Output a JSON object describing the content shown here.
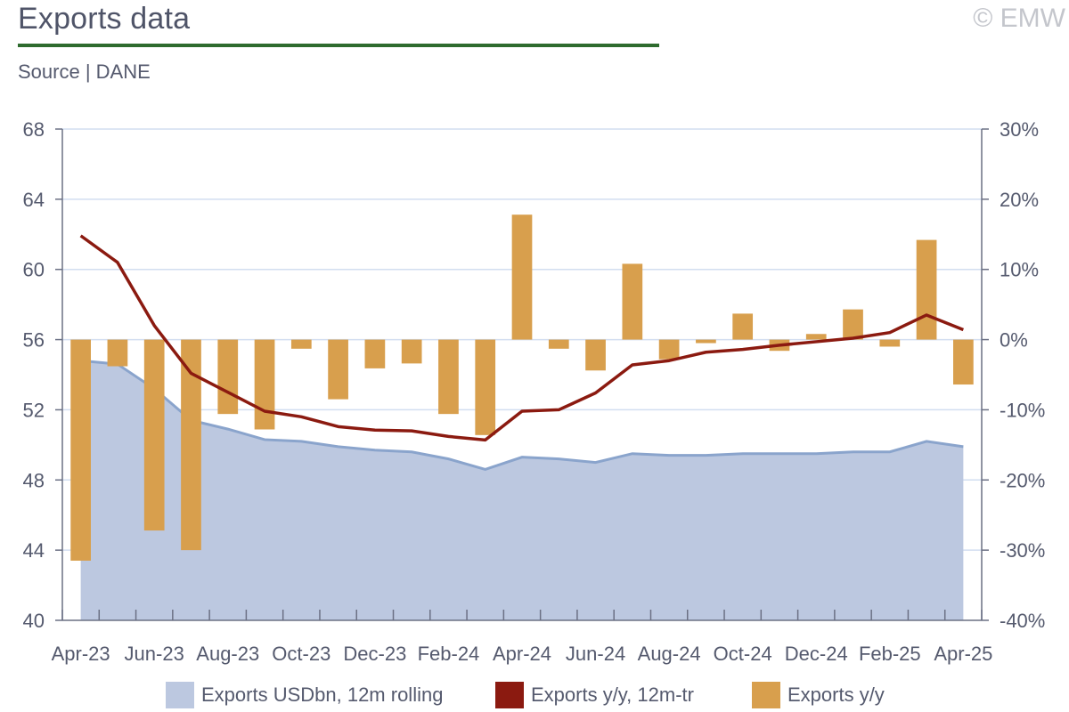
{
  "header": {
    "title": "Exports data",
    "copyright": "© EMW",
    "source": "Source | DANE"
  },
  "colors": {
    "area": "#bcc8e0",
    "area_line": "#8aa4cc",
    "line": "#8b1a10",
    "bars": "#d89f4d",
    "grid": "#d2def0",
    "axis": "#6b7084",
    "title_rule": "#2e6b2e"
  },
  "chart_data": {
    "type": "bar",
    "x": [
      "Apr-23",
      "May-23",
      "Jun-23",
      "Jul-23",
      "Aug-23",
      "Sep-23",
      "Oct-23",
      "Nov-23",
      "Dec-23",
      "Jan-24",
      "Feb-24",
      "Mar-24",
      "Apr-24",
      "May-24",
      "Jun-24",
      "Jul-24",
      "Aug-24",
      "Sep-24",
      "Oct-24",
      "Nov-24",
      "Dec-24",
      "Jan-25",
      "Feb-25",
      "Mar-25",
      "Apr-25"
    ],
    "x_tick_labels": [
      "Apr-23",
      "Jun-23",
      "Aug-23",
      "Oct-23",
      "Dec-23",
      "Feb-24",
      "Apr-24",
      "Jun-24",
      "Aug-24",
      "Oct-24",
      "Dec-24",
      "Feb-25",
      "Apr-25"
    ],
    "y_left": {
      "ylim": [
        40,
        68
      ],
      "ticks": [
        "40",
        "44",
        "48",
        "52",
        "56",
        "60",
        "64",
        "68"
      ]
    },
    "y_right": {
      "ylim": [
        -40,
        30
      ],
      "ticks": [
        "-40%",
        "-30%",
        "-20%",
        "-10%",
        "0%",
        "10%",
        "20%",
        "30%"
      ]
    },
    "grid": true,
    "legend_position": "bottom",
    "series": [
      {
        "name": "Exports USDbn, 12m rolling",
        "type": "area",
        "axis": "left",
        "values": [
          54.8,
          54.6,
          53.2,
          51.4,
          50.9,
          50.3,
          50.2,
          49.9,
          49.7,
          49.6,
          49.2,
          48.6,
          49.3,
          49.2,
          49.0,
          49.5,
          49.4,
          49.4,
          49.5,
          49.5,
          49.5,
          49.6,
          49.6,
          50.2,
          49.9
        ]
      },
      {
        "name": "Exports y/y, 12m-tr",
        "type": "line",
        "axis": "right",
        "values": [
          14.8,
          11.0,
          2.0,
          -4.8,
          -7.5,
          -10.2,
          -11.0,
          -12.4,
          -12.9,
          -13.0,
          -13.8,
          -14.3,
          -10.2,
          -10.0,
          -7.6,
          -3.6,
          -3.0,
          -1.8,
          -1.4,
          -0.8,
          -0.3,
          0.2,
          1.0,
          3.5,
          1.4
        ]
      },
      {
        "name": "Exports y/y",
        "type": "bar",
        "axis": "right",
        "values": [
          -31.5,
          -3.8,
          -27.2,
          -30.0,
          -10.6,
          -12.8,
          -1.3,
          -8.5,
          -4.1,
          -3.4,
          -10.6,
          -13.6,
          17.8,
          -1.3,
          -4.4,
          10.8,
          -2.8,
          -0.5,
          3.7,
          -1.6,
          0.8,
          4.3,
          -1.0,
          14.2,
          -6.4
        ]
      }
    ]
  }
}
